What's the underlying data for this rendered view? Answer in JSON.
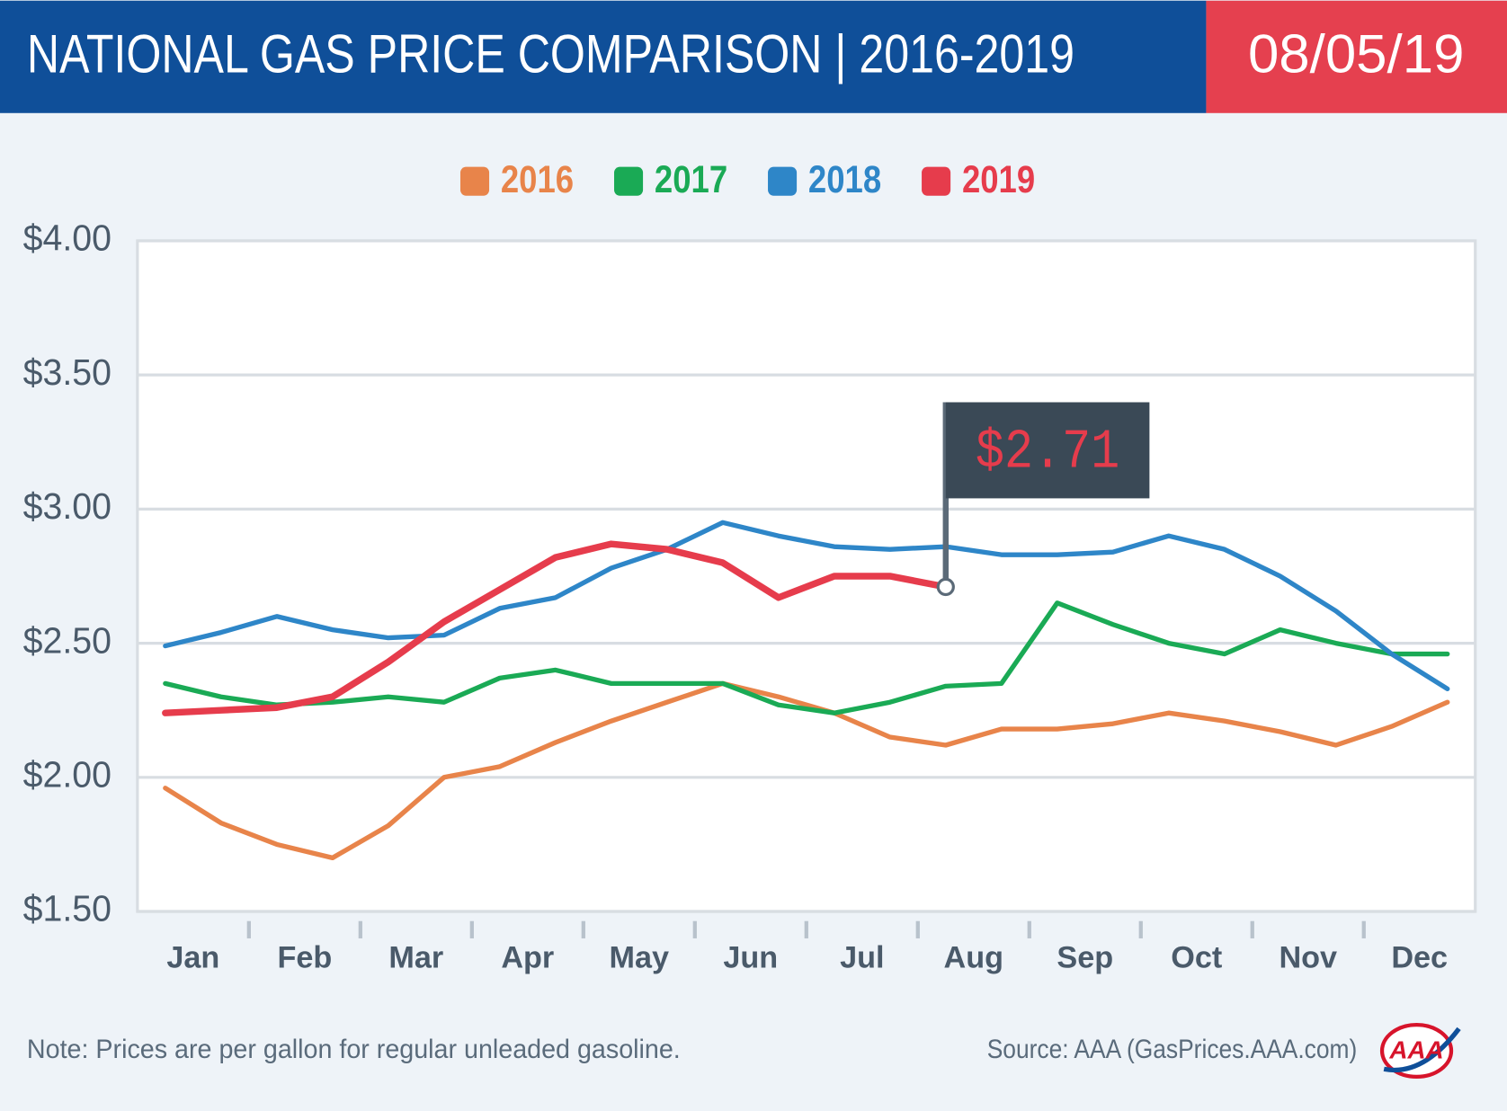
{
  "header": {
    "title": "NATIONAL GAS PRICE COMPARISON | 2016-2019",
    "date": "08/05/19"
  },
  "chart_data": {
    "type": "line",
    "categories": [
      "Jan",
      null,
      "Feb",
      null,
      "Mar",
      null,
      "Apr",
      null,
      "May",
      null,
      "Jun",
      null,
      "Jul",
      null,
      "Aug",
      null,
      "Sep",
      null,
      "Oct",
      null,
      "Nov",
      null,
      "Dec",
      null
    ],
    "series": [
      {
        "name": "2016",
        "color": "#e8844a",
        "values": [
          1.96,
          1.83,
          1.75,
          1.7,
          1.82,
          2.0,
          2.04,
          2.13,
          2.21,
          2.28,
          2.35,
          2.3,
          2.24,
          2.15,
          2.12,
          2.18,
          2.18,
          2.2,
          2.24,
          2.21,
          2.17,
          2.12,
          2.19,
          2.28
        ]
      },
      {
        "name": "2017",
        "color": "#1aaa55",
        "values": [
          2.35,
          2.3,
          2.27,
          2.28,
          2.3,
          2.28,
          2.37,
          2.4,
          2.35,
          2.35,
          2.35,
          2.27,
          2.24,
          2.28,
          2.34,
          2.35,
          2.65,
          2.57,
          2.5,
          2.46,
          2.55,
          2.5,
          2.46,
          2.46
        ]
      },
      {
        "name": "2018",
        "color": "#2e86c8",
        "values": [
          2.49,
          2.54,
          2.6,
          2.55,
          2.52,
          2.53,
          2.63,
          2.67,
          2.78,
          2.85,
          2.95,
          2.9,
          2.86,
          2.85,
          2.86,
          2.83,
          2.83,
          2.84,
          2.9,
          2.85,
          2.75,
          2.62,
          2.46,
          2.33
        ]
      },
      {
        "name": "2019",
        "color": "#e63c4c",
        "values": [
          2.24,
          2.25,
          2.26,
          2.3,
          2.43,
          2.58,
          2.7,
          2.82,
          2.87,
          2.85,
          2.8,
          2.67,
          2.75,
          2.75,
          2.71,
          null,
          null,
          null,
          null,
          null,
          null,
          null,
          null,
          null
        ]
      }
    ],
    "ylim": [
      1.5,
      4
    ],
    "yticks": [
      {
        "value": 1.5,
        "label": "$1.50"
      },
      {
        "value": 2,
        "label": "$2.00"
      },
      {
        "value": 2.5,
        "label": "$2.50"
      },
      {
        "value": 3,
        "label": "$3.00"
      },
      {
        "value": 3.5,
        "label": "$3.50"
      },
      {
        "value": 4,
        "label": "$4.00"
      }
    ],
    "grid": true,
    "legend": "top",
    "annotation": {
      "text": "$2.71",
      "value": 2.71
    }
  },
  "footer": {
    "note": "Note: Prices are per gallon for regular unleaded gasoline.",
    "source": "Source: AAA (GasPrices.AAA.com)",
    "logo": "AAA"
  }
}
